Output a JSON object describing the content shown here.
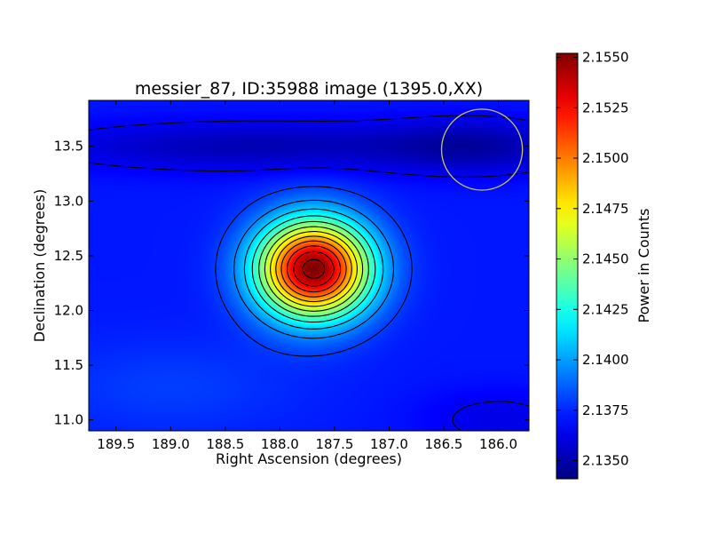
{
  "chart_data": {
    "type": "heatmap",
    "title": "messier_87, ID:35988 image (1395.0,XX)",
    "xlabel": "Right Ascension (degrees)",
    "ylabel": "Declination (degrees)",
    "xlim": [
      189.75,
      185.72
    ],
    "ylim": [
      10.9,
      13.92
    ],
    "x_ticks": [
      189.5,
      189.0,
      188.5,
      188.0,
      187.5,
      187.0,
      186.5,
      186.0
    ],
    "x_tick_labels": [
      "189.5",
      "189.0",
      "188.5",
      "188.0",
      "187.5",
      "187.0",
      "186.5",
      "186.0"
    ],
    "y_ticks": [
      11.0,
      11.5,
      12.0,
      12.5,
      13.0,
      13.5
    ],
    "y_tick_labels": [
      "11.0",
      "11.5",
      "12.0",
      "12.5",
      "13.0",
      "13.5"
    ],
    "grid": false,
    "colormap": "jet",
    "colorbar": {
      "label": "Power in Counts",
      "range": [
        2.1341,
        2.1552
      ],
      "ticks": [
        2.135,
        2.1375,
        2.14,
        2.1425,
        2.145,
        2.1475,
        2.15,
        2.1525,
        2.155
      ],
      "tick_labels": [
        "2.1350",
        "2.1375",
        "2.1400",
        "2.1425",
        "2.1450",
        "2.1475",
        "2.1500",
        "2.1525",
        "2.1550"
      ]
    },
    "background_level": 2.1372,
    "peak": {
      "ra": 187.69,
      "dec": 12.37,
      "value": 2.1552
    },
    "features": [
      {
        "ra": 187.69,
        "dec": 12.38,
        "amplitude": 0.018,
        "sigma_ra": 0.36,
        "sigma_dec": 0.31
      },
      {
        "ra": 188.2,
        "dec": 13.5,
        "amplitude": -0.002,
        "sigma_ra": 1.4,
        "sigma_dec": 0.16
      },
      {
        "ra": 186.2,
        "dec": 13.5,
        "amplitude": -0.0018,
        "sigma_ra": 0.6,
        "sigma_dec": 0.18
      },
      {
        "ra": 186.0,
        "dec": 11.0,
        "amplitude": -0.001,
        "sigma_ra": 0.5,
        "sigma_dec": 0.2
      },
      {
        "ra": 189.0,
        "dec": 11.3,
        "amplitude": 0.0008,
        "sigma_ra": 0.8,
        "sigma_dec": 0.3
      }
    ],
    "contour_levels": [
      2.1365,
      2.138,
      2.1395,
      2.141,
      2.1425,
      2.144,
      2.1455,
      2.147,
      2.1485,
      2.15,
      2.1515,
      2.153,
      2.1545
    ],
    "annotations": [
      {
        "type": "circle",
        "ra": 186.15,
        "dec": 13.47,
        "radius_deg": 0.37,
        "color": "#c8c864"
      }
    ]
  }
}
